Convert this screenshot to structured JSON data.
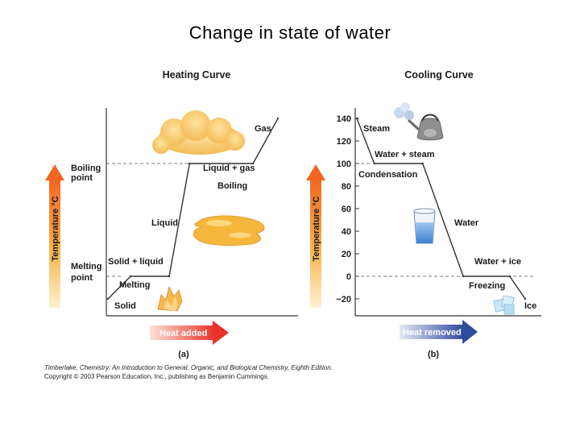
{
  "slide": {
    "title": "Change in state of water",
    "credit_line_1": "Timberlake, Chemistry: An Introduction to General, Organic, and Biological Chemistry, Eighth Edition.",
    "credit_line_2": "Copyright © 2003 Pearson Education, Inc., publishing as Benjamin Cummings."
  },
  "colors": {
    "curve": "#333333",
    "arrow_up": "#f26522",
    "heat_added_arrow": "#e8322b",
    "heat_removed_arrow": "#2e4a9a",
    "cloud": "#f7c55a",
    "liquid_puddle": "#f4b73b",
    "ice": "#c7e6f6",
    "water_glass": "#4a90d9"
  },
  "chart_data": [
    {
      "type": "line",
      "title": "Heating Curve",
      "panel_label": "(a)",
      "xlabel": "Heat added",
      "ylabel": "Temperature °C",
      "y_ticks": [],
      "reference_levels": [
        {
          "name": "Melting point",
          "value": 0
        },
        {
          "name": "Boiling point",
          "value": 100
        }
      ],
      "series": [
        {
          "x": [
            0,
            1,
            2.7,
            3.6,
            6.4,
            7.5
          ],
          "y": [
            -20,
            0,
            0,
            100,
            100,
            140
          ]
        }
      ],
      "annotations": [
        "Solid",
        "Melting",
        "Solid + liquid",
        "Liquid",
        "Boiling",
        "Liquid + gas",
        "Gas"
      ],
      "ylim": [
        -30,
        150
      ]
    },
    {
      "type": "line",
      "title": "Cooling Curve",
      "panel_label": "(b)",
      "xlabel": "Heat removed",
      "ylabel": "Temperature °C",
      "y_ticks": [
        "140",
        "120",
        "100",
        "80",
        "60",
        "40",
        "20",
        "0",
        "−20"
      ],
      "series": [
        {
          "x": [
            0,
            0.9,
            3.4,
            5.5,
            7.9,
            8.7
          ],
          "y": [
            140,
            100,
            100,
            0,
            0,
            -20
          ]
        }
      ],
      "annotations": [
        "Steam",
        "Water + steam",
        "Condensation",
        "Water",
        "Water + ice",
        "Freezing",
        "Ice"
      ],
      "ylim": [
        -30,
        150
      ]
    }
  ]
}
